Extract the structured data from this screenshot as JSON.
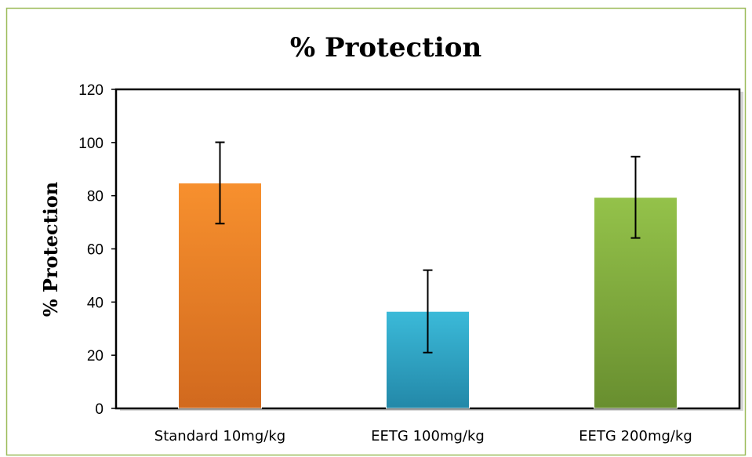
{
  "chart_data": {
    "type": "bar",
    "title": "% Protection",
    "xlabel": "",
    "ylabel": "% Protection",
    "ylim": [
      0,
      120
    ],
    "yticks": [
      0,
      20,
      40,
      60,
      80,
      100,
      120
    ],
    "categories": [
      "Standard 10mg/kg",
      "EETG 100mg/kg",
      "EETG 200mg/kg"
    ],
    "values": [
      84.8,
      36.5,
      79.4
    ],
    "errors": [
      15.3,
      15.5,
      15.3
    ],
    "colors": [
      "#E67A28",
      "#2EA7C9",
      "#7FA73C"
    ],
    "grid": false,
    "legend": "none"
  }
}
